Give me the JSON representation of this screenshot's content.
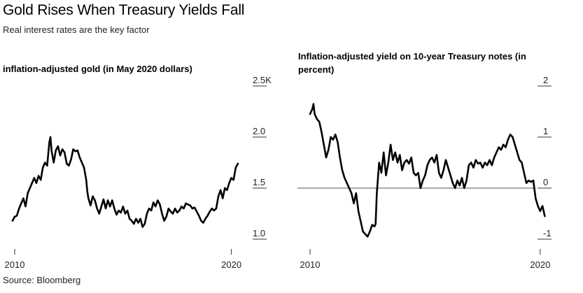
{
  "header": {
    "title": "Gold Rises When Treasury Yields Fall",
    "subtitle": "Real interest rates are the key factor"
  },
  "footer": {
    "source": "Source: Bloomberg"
  },
  "chart_data": [
    {
      "type": "line",
      "title": "inflation-adjusted gold (in May 2020 dollars)",
      "x_unit": "year",
      "x_ticks": [
        {
          "value": 2010,
          "label": "2010"
        },
        {
          "value": 2020,
          "label": "2020"
        }
      ],
      "y_ticks": [
        {
          "value": 1.0,
          "label": "1.0"
        },
        {
          "value": 1.5,
          "label": "1.5"
        },
        {
          "value": 2.0,
          "label": "2.0"
        },
        {
          "value": 2.5,
          "label": "2.5K"
        }
      ],
      "xlim": [
        2010.0,
        2020.4
      ],
      "ylim": [
        1.0,
        2.5
      ],
      "grid": false,
      "series": [
        {
          "color": "#000000",
          "points": [
            [
              2009.9,
              1.18
            ],
            [
              2010.0,
              1.22
            ],
            [
              2010.1,
              1.23
            ],
            [
              2010.2,
              1.3
            ],
            [
              2010.3,
              1.35
            ],
            [
              2010.4,
              1.4
            ],
            [
              2010.5,
              1.32
            ],
            [
              2010.6,
              1.45
            ],
            [
              2010.7,
              1.5
            ],
            [
              2010.8,
              1.55
            ],
            [
              2010.9,
              1.6
            ],
            [
              2011.0,
              1.55
            ],
            [
              2011.1,
              1.62
            ],
            [
              2011.2,
              1.58
            ],
            [
              2011.3,
              1.7
            ],
            [
              2011.4,
              1.75
            ],
            [
              2011.5,
              1.72
            ],
            [
              2011.6,
              1.95
            ],
            [
              2011.65,
              2.0
            ],
            [
              2011.7,
              1.87
            ],
            [
              2011.8,
              1.75
            ],
            [
              2011.9,
              1.87
            ],
            [
              2012.0,
              1.91
            ],
            [
              2012.1,
              1.82
            ],
            [
              2012.2,
              1.88
            ],
            [
              2012.3,
              1.85
            ],
            [
              2012.4,
              1.74
            ],
            [
              2012.5,
              1.72
            ],
            [
              2012.6,
              1.78
            ],
            [
              2012.7,
              1.88
            ],
            [
              2012.8,
              1.86
            ],
            [
              2012.9,
              1.87
            ],
            [
              2013.0,
              1.8
            ],
            [
              2013.1,
              1.75
            ],
            [
              2013.2,
              1.7
            ],
            [
              2013.3,
              1.58
            ],
            [
              2013.35,
              1.47
            ],
            [
              2013.4,
              1.4
            ],
            [
              2013.5,
              1.33
            ],
            [
              2013.6,
              1.42
            ],
            [
              2013.7,
              1.38
            ],
            [
              2013.8,
              1.3
            ],
            [
              2013.9,
              1.25
            ],
            [
              2014.0,
              1.32
            ],
            [
              2014.1,
              1.39
            ],
            [
              2014.2,
              1.3
            ],
            [
              2014.3,
              1.38
            ],
            [
              2014.4,
              1.32
            ],
            [
              2014.5,
              1.38
            ],
            [
              2014.6,
              1.3
            ],
            [
              2014.7,
              1.24
            ],
            [
              2014.8,
              1.28
            ],
            [
              2014.9,
              1.26
            ],
            [
              2015.0,
              1.32
            ],
            [
              2015.1,
              1.25
            ],
            [
              2015.2,
              1.28
            ],
            [
              2015.3,
              1.2
            ],
            [
              2015.4,
              1.18
            ],
            [
              2015.5,
              1.15
            ],
            [
              2015.6,
              1.2
            ],
            [
              2015.7,
              1.16
            ],
            [
              2015.8,
              1.2
            ],
            [
              2015.9,
              1.12
            ],
            [
              2016.0,
              1.15
            ],
            [
              2016.1,
              1.25
            ],
            [
              2016.2,
              1.3
            ],
            [
              2016.3,
              1.28
            ],
            [
              2016.4,
              1.36
            ],
            [
              2016.5,
              1.32
            ],
            [
              2016.6,
              1.38
            ],
            [
              2016.7,
              1.34
            ],
            [
              2016.8,
              1.25
            ],
            [
              2016.9,
              1.18
            ],
            [
              2017.0,
              1.22
            ],
            [
              2017.1,
              1.3
            ],
            [
              2017.2,
              1.27
            ],
            [
              2017.3,
              1.25
            ],
            [
              2017.4,
              1.3
            ],
            [
              2017.5,
              1.26
            ],
            [
              2017.6,
              1.28
            ],
            [
              2017.7,
              1.32
            ],
            [
              2017.8,
              1.3
            ],
            [
              2017.9,
              1.35
            ],
            [
              2018.0,
              1.34
            ],
            [
              2018.1,
              1.33
            ],
            [
              2018.2,
              1.3
            ],
            [
              2018.3,
              1.31
            ],
            [
              2018.4,
              1.27
            ],
            [
              2018.5,
              1.23
            ],
            [
              2018.6,
              1.18
            ],
            [
              2018.7,
              1.16
            ],
            [
              2018.8,
              1.2
            ],
            [
              2018.9,
              1.23
            ],
            [
              2019.0,
              1.27
            ],
            [
              2019.1,
              1.3
            ],
            [
              2019.2,
              1.28
            ],
            [
              2019.3,
              1.3
            ],
            [
              2019.4,
              1.42
            ],
            [
              2019.5,
              1.48
            ],
            [
              2019.6,
              1.4
            ],
            [
              2019.7,
              1.5
            ],
            [
              2019.8,
              1.48
            ],
            [
              2019.9,
              1.55
            ],
            [
              2020.0,
              1.6
            ],
            [
              2020.1,
              1.58
            ],
            [
              2020.2,
              1.7
            ],
            [
              2020.3,
              1.74
            ]
          ]
        }
      ]
    },
    {
      "type": "line",
      "title": "Inflation-adjusted yield on 10-year Treasury notes (in percent)",
      "x_unit": "year",
      "x_ticks": [
        {
          "value": 2010,
          "label": "2010"
        },
        {
          "value": 2020,
          "label": "2020"
        }
      ],
      "y_ticks": [
        {
          "value": -1,
          "label": "-1"
        },
        {
          "value": 0,
          "label": "0"
        },
        {
          "value": 1,
          "label": "1"
        },
        {
          "value": 2,
          "label": "2"
        }
      ],
      "xlim": [
        2010.0,
        2020.4
      ],
      "ylim": [
        -1.0,
        2.0
      ],
      "zero_line": true,
      "grid": false,
      "series": [
        {
          "color": "#000000",
          "points": [
            [
              2010.0,
              1.45
            ],
            [
              2010.1,
              1.55
            ],
            [
              2010.15,
              1.65
            ],
            [
              2010.2,
              1.45
            ],
            [
              2010.3,
              1.35
            ],
            [
              2010.4,
              1.3
            ],
            [
              2010.5,
              1.1
            ],
            [
              2010.6,
              0.85
            ],
            [
              2010.7,
              0.6
            ],
            [
              2010.8,
              0.75
            ],
            [
              2010.9,
              1.0
            ],
            [
              2011.0,
              0.95
            ],
            [
              2011.1,
              1.05
            ],
            [
              2011.2,
              0.9
            ],
            [
              2011.3,
              0.6
            ],
            [
              2011.4,
              0.35
            ],
            [
              2011.5,
              0.2
            ],
            [
              2011.6,
              0.1
            ],
            [
              2011.7,
              0.0
            ],
            [
              2011.8,
              -0.1
            ],
            [
              2011.9,
              -0.3
            ],
            [
              2012.0,
              -0.1
            ],
            [
              2012.1,
              -0.45
            ],
            [
              2012.2,
              -0.65
            ],
            [
              2012.3,
              -0.85
            ],
            [
              2012.4,
              -0.9
            ],
            [
              2012.5,
              -0.95
            ],
            [
              2012.6,
              -0.85
            ],
            [
              2012.7,
              -0.72
            ],
            [
              2012.8,
              -0.75
            ],
            [
              2012.85,
              -0.7
            ],
            [
              2012.9,
              -0.1
            ],
            [
              2013.0,
              0.5
            ],
            [
              2013.1,
              0.3
            ],
            [
              2013.2,
              0.7
            ],
            [
              2013.3,
              0.25
            ],
            [
              2013.4,
              0.5
            ],
            [
              2013.5,
              0.85
            ],
            [
              2013.6,
              0.55
            ],
            [
              2013.7,
              0.7
            ],
            [
              2013.8,
              0.5
            ],
            [
              2013.9,
              0.65
            ],
            [
              2014.0,
              0.35
            ],
            [
              2014.1,
              0.5
            ],
            [
              2014.2,
              0.55
            ],
            [
              2014.3,
              0.48
            ],
            [
              2014.4,
              0.6
            ],
            [
              2014.5,
              0.3
            ],
            [
              2014.6,
              0.25
            ],
            [
              2014.7,
              0.3
            ],
            [
              2014.8,
              0.0
            ],
            [
              2014.9,
              0.15
            ],
            [
              2015.0,
              0.25
            ],
            [
              2015.1,
              0.45
            ],
            [
              2015.2,
              0.55
            ],
            [
              2015.3,
              0.6
            ],
            [
              2015.4,
              0.5
            ],
            [
              2015.5,
              0.65
            ],
            [
              2015.6,
              0.3
            ],
            [
              2015.7,
              0.2
            ],
            [
              2015.8,
              0.35
            ],
            [
              2015.9,
              0.55
            ],
            [
              2016.0,
              0.4
            ],
            [
              2016.1,
              0.25
            ],
            [
              2016.2,
              0.1
            ],
            [
              2016.3,
              0.0
            ],
            [
              2016.4,
              0.15
            ],
            [
              2016.5,
              0.05
            ],
            [
              2016.6,
              0.2
            ],
            [
              2016.7,
              0.0
            ],
            [
              2016.8,
              0.15
            ],
            [
              2016.9,
              0.45
            ],
            [
              2017.0,
              0.5
            ],
            [
              2017.1,
              0.4
            ],
            [
              2017.2,
              0.55
            ],
            [
              2017.3,
              0.48
            ],
            [
              2017.4,
              0.5
            ],
            [
              2017.5,
              0.4
            ],
            [
              2017.6,
              0.5
            ],
            [
              2017.7,
              0.45
            ],
            [
              2017.8,
              0.55
            ],
            [
              2017.9,
              0.45
            ],
            [
              2018.0,
              0.6
            ],
            [
              2018.1,
              0.7
            ],
            [
              2018.2,
              0.8
            ],
            [
              2018.3,
              0.75
            ],
            [
              2018.4,
              0.85
            ],
            [
              2018.5,
              0.8
            ],
            [
              2018.6,
              0.95
            ],
            [
              2018.7,
              1.05
            ],
            [
              2018.8,
              1.0
            ],
            [
              2018.9,
              0.85
            ],
            [
              2019.0,
              0.7
            ],
            [
              2019.1,
              0.55
            ],
            [
              2019.2,
              0.5
            ],
            [
              2019.3,
              0.3
            ],
            [
              2019.4,
              0.1
            ],
            [
              2019.5,
              0.15
            ],
            [
              2019.6,
              0.12
            ],
            [
              2019.7,
              0.15
            ],
            [
              2019.8,
              -0.2
            ],
            [
              2019.9,
              -0.35
            ],
            [
              2020.0,
              -0.45
            ],
            [
              2020.1,
              -0.35
            ],
            [
              2020.2,
              -0.55
            ]
          ]
        }
      ]
    }
  ]
}
